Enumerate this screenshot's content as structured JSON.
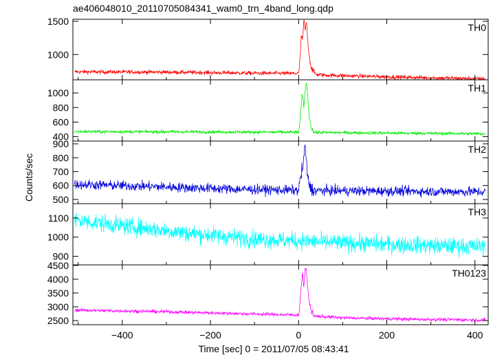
{
  "chart_data": {
    "type": "line",
    "title": "ae406048010_20110705084341_wam0_trn_4band_long.qdp",
    "xlabel": "Time [sec] 0 = 2011/07/05 08:43:41",
    "ylabel": "Counts/sec",
    "xlim": [
      -512,
      430
    ],
    "x_ticks": [
      -400,
      -200,
      0,
      200,
      400
    ],
    "grid": false,
    "panels": [
      {
        "name": "TH0",
        "color": "#ff0000",
        "ylim": [
          620,
          1530
        ],
        "y_ticks": [
          1000,
          1500
        ],
        "baseline": [
          [
            -512,
            740
          ],
          [
            -300,
            735
          ],
          [
            -100,
            720
          ],
          [
            0,
            715
          ],
          [
            60,
            690
          ],
          [
            200,
            665
          ],
          [
            300,
            650
          ],
          [
            420,
            635
          ]
        ],
        "noise": 30,
        "peak": [
          [
            0,
            715
          ],
          [
            3,
            900
          ],
          [
            6,
            1300
          ],
          [
            9,
            1200
          ],
          [
            12,
            1530
          ],
          [
            15,
            1350
          ],
          [
            18,
            1500
          ],
          [
            21,
            1180
          ],
          [
            24,
            1000
          ],
          [
            28,
            820
          ],
          [
            34,
            740
          ],
          [
            40,
            705
          ]
        ]
      },
      {
        "name": "TH1",
        "color": "#00ee00",
        "ylim": [
          340,
          1180
        ],
        "y_ticks": [
          400,
          600,
          800,
          1000
        ],
        "baseline": [
          [
            -512,
            470
          ],
          [
            -200,
            465
          ],
          [
            0,
            460
          ],
          [
            200,
            450
          ],
          [
            420,
            440
          ]
        ],
        "noise": 22,
        "peak": [
          [
            0,
            460
          ],
          [
            3,
            600
          ],
          [
            6,
            850
          ],
          [
            9,
            1000
          ],
          [
            12,
            780
          ],
          [
            15,
            1050
          ],
          [
            18,
            1150
          ],
          [
            21,
            900
          ],
          [
            24,
            700
          ],
          [
            28,
            540
          ],
          [
            34,
            470
          ]
        ]
      },
      {
        "name": "TH2",
        "color": "#0000dd",
        "ylim": [
          470,
          920
        ],
        "y_ticks": [
          500,
          600,
          700,
          800,
          900
        ],
        "baseline": [
          [
            -512,
            610
          ],
          [
            -300,
            590
          ],
          [
            -150,
            575
          ],
          [
            0,
            565
          ],
          [
            200,
            560
          ],
          [
            420,
            555
          ]
        ],
        "noise": 35,
        "peak": [
          [
            0,
            565
          ],
          [
            4,
            650
          ],
          [
            8,
            720
          ],
          [
            12,
            760
          ],
          [
            14,
            920
          ],
          [
            17,
            800
          ],
          [
            20,
            660
          ],
          [
            26,
            590
          ],
          [
            32,
            565
          ]
        ]
      },
      {
        "name": "TH3",
        "color": "#00ffff",
        "ylim": [
          855,
          1175
        ],
        "y_ticks": [
          900,
          1000,
          1100
        ],
        "baseline": [
          [
            -512,
            1090
          ],
          [
            -400,
            1060
          ],
          [
            -250,
            1020
          ],
          [
            -100,
            990
          ],
          [
            100,
            970
          ],
          [
            300,
            955
          ],
          [
            420,
            950
          ]
        ],
        "noise": 45,
        "peak": []
      },
      {
        "name": "TH0123",
        "color": "#ff00ff",
        "ylim": [
          2350,
          4520
        ],
        "y_ticks": [
          2500,
          3000,
          3500,
          4000,
          4500
        ],
        "baseline": [
          [
            -512,
            2880
          ],
          [
            -300,
            2820
          ],
          [
            -100,
            2740
          ],
          [
            0,
            2700
          ],
          [
            100,
            2600
          ],
          [
            250,
            2550
          ],
          [
            420,
            2520
          ]
        ],
        "noise": 60,
        "peak": [
          [
            0,
            2700
          ],
          [
            3,
            3100
          ],
          [
            6,
            3800
          ],
          [
            9,
            4200
          ],
          [
            12,
            3700
          ],
          [
            15,
            4450
          ],
          [
            18,
            4200
          ],
          [
            21,
            3600
          ],
          [
            24,
            3200
          ],
          [
            28,
            2900
          ],
          [
            34,
            2700
          ]
        ]
      }
    ]
  }
}
